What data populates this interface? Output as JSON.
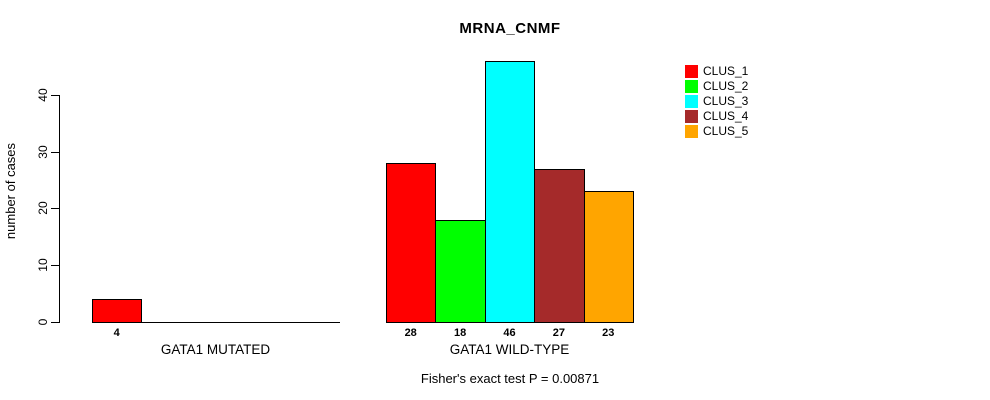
{
  "chart_data": {
    "type": "bar",
    "title": "MRNA_CNMF",
    "subtitle": "Fisher's exact test P = 0.00871",
    "ylabel": "number of cases",
    "xlabel": "",
    "ylim": [
      0,
      40
    ],
    "yticks": [
      0,
      10,
      20,
      30,
      40
    ],
    "grid": false,
    "legend_position": "top-right",
    "bar_border_color": "#000000",
    "background_color": "#FFFFFF",
    "categories": [
      "GATA1 MUTATED",
      "GATA1 WILD-TYPE"
    ],
    "series": [
      {
        "name": "CLUS_1",
        "color": "#FF0000",
        "values": [
          4,
          28
        ]
      },
      {
        "name": "CLUS_2",
        "color": "#00FF00",
        "values": [
          0,
          18
        ]
      },
      {
        "name": "CLUS_3",
        "color": "#00FFFF",
        "values": [
          0,
          46
        ]
      },
      {
        "name": "CLUS_4",
        "color": "#A52A2A",
        "values": [
          0,
          27
        ]
      },
      {
        "name": "CLUS_5",
        "color": "#FFA500",
        "values": [
          0,
          23
        ]
      }
    ],
    "value_label_rule": "shown under each bar with value > 0"
  }
}
